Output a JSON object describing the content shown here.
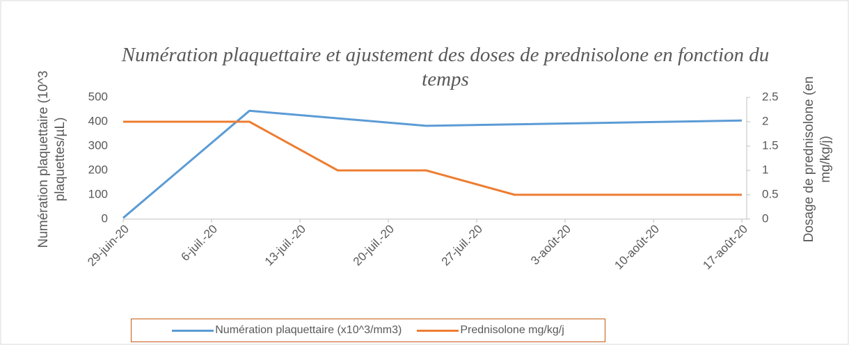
{
  "chart_data": {
    "type": "line",
    "title": "Numération plaquettaire et ajustement des doses de prednisolone en fonction du temps",
    "y_label": "Numération plaquettaire (10^3 plaquettes/µL)",
    "y2_label": "Dosage de prednisolone (en mg/kg/j)",
    "xlim": [
      "2020-06-29",
      "2020-08-17"
    ],
    "xticks": [
      {
        "value": "2020-06-29",
        "label": "29-juin-20"
      },
      {
        "value": "2020-07-06",
        "label": "6-juil.-20"
      },
      {
        "value": "2020-07-13",
        "label": "13-juil.-20"
      },
      {
        "value": "2020-07-20",
        "label": "20-juil.-20"
      },
      {
        "value": "2020-07-27",
        "label": "27-juil.-20"
      },
      {
        "value": "2020-08-03",
        "label": "3-août-20"
      },
      {
        "value": "2020-08-10",
        "label": "10-août-20"
      },
      {
        "value": "2020-08-17",
        "label": "17-août-20"
      }
    ],
    "ylim": [
      0,
      500
    ],
    "yticks": [
      0,
      100,
      200,
      300,
      400,
      500
    ],
    "y2lim": [
      0,
      2.5
    ],
    "y2ticks": [
      0,
      0.5,
      1,
      1.5,
      2,
      2.5
    ],
    "legend": "bottom",
    "series": [
      {
        "name": "Numération plaquettaire (x10^3/mm3)",
        "color": "#5b9bd5",
        "x": [
          "2020-06-29",
          "2020-07-09",
          "2020-07-23",
          "2020-08-17"
        ],
        "values": [
          5,
          445,
          383,
          405
        ]
      },
      {
        "name": "Prednisolone mg/kg/j",
        "color": "#ed7d31",
        "axis": "y2",
        "x": [
          "2020-06-29",
          "2020-07-09",
          "2020-07-16",
          "2020-07-23",
          "2020-07-30",
          "2020-08-17"
        ],
        "values": [
          2,
          2,
          1,
          1,
          0.5,
          0.5
        ]
      }
    ]
  }
}
